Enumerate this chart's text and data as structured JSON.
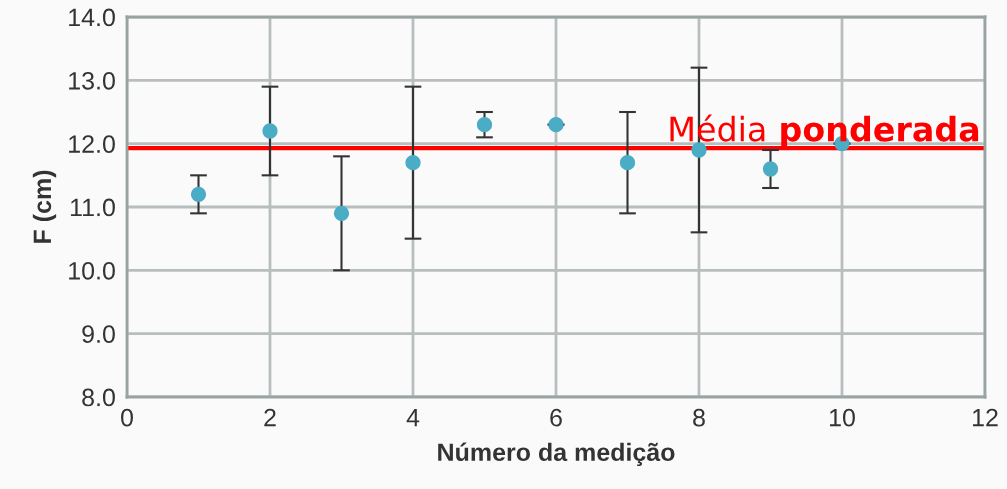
{
  "chart_data": {
    "type": "scatter",
    "xlabel": "Número da medição",
    "ylabel": "F (cm)",
    "x": [
      1,
      2,
      3,
      4,
      5,
      6,
      7,
      8,
      9,
      10
    ],
    "series": [
      {
        "color": "#4bacc6",
        "values": [
          11.2,
          12.2,
          10.9,
          11.7,
          12.3,
          12.3,
          11.7,
          11.9,
          11.6,
          12.0
        ],
        "errors": [
          [
            10.9,
            11.5
          ],
          [
            11.5,
            12.9
          ],
          [
            10.0,
            11.8
          ],
          [
            10.5,
            12.9
          ],
          [
            12.1,
            12.5
          ],
          null,
          [
            10.9,
            12.5
          ],
          [
            10.6,
            13.2
          ],
          [
            11.3,
            11.9
          ],
          null
        ]
      }
    ],
    "xlim": [
      0,
      12
    ],
    "xticks": [
      0,
      2,
      4,
      6,
      8,
      10,
      12
    ],
    "ylim": [
      8.0,
      14.0
    ],
    "yticks": [
      {
        "value": 8,
        "label": "8.0"
      },
      {
        "value": 9,
        "label": "9.0"
      },
      {
        "value": 10,
        "label": "10.0"
      },
      {
        "value": 11,
        "label": "11.0"
      },
      {
        "value": 12,
        "label": "12.0"
      },
      {
        "value": 13,
        "label": "13.0"
      },
      {
        "value": 14,
        "label": "14.0"
      }
    ],
    "grid": true,
    "marker": "circle",
    "ref_lines": [
      {
        "axis": "y",
        "value": 11.93,
        "label": "Média ponderada",
        "color": "#ff0000"
      }
    ]
  }
}
